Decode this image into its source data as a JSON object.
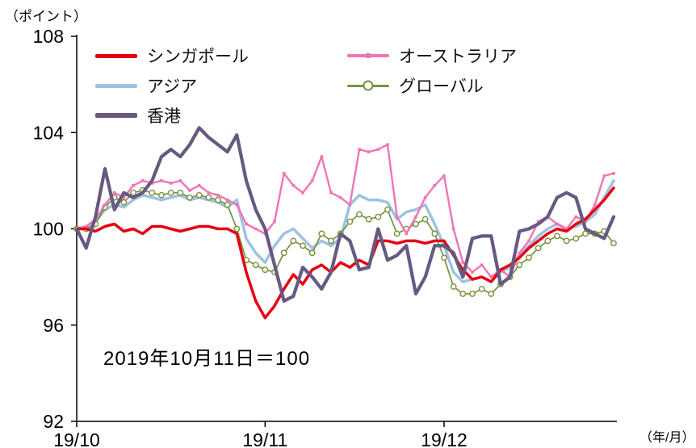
{
  "chart_data": {
    "type": "line",
    "title": "",
    "annotation": "2019年10月11日＝100",
    "y_unit_label": "（ポイント）",
    "x_unit_label": "（年/月）",
    "ylim": [
      92,
      108
    ],
    "y_ticks": [
      108,
      104,
      100,
      96,
      92
    ],
    "x_ticks": [
      {
        "i": 0,
        "label": "19/10"
      },
      {
        "i": 20,
        "label": "19/11"
      },
      {
        "i": 39,
        "label": "19/12"
      }
    ],
    "grid": false,
    "legend_position": "top-inside",
    "series": [
      {
        "id": "singapore",
        "name": "シンガポール",
        "color": "#e60012",
        "marker": "none",
        "values": [
          100.0,
          100.0,
          99.9,
          100.1,
          100.2,
          99.9,
          100.0,
          99.8,
          100.1,
          100.1,
          100.0,
          99.9,
          100.0,
          100.1,
          100.1,
          100.0,
          100.0,
          99.8,
          98.2,
          97.0,
          96.3,
          96.8,
          97.5,
          98.1,
          97.7,
          98.3,
          98.5,
          98.2,
          98.6,
          98.4,
          98.7,
          98.5,
          99.5,
          99.5,
          99.4,
          99.5,
          99.5,
          99.4,
          99.5,
          99.5,
          98.9,
          98.3,
          97.9,
          98.0,
          97.8,
          98.3,
          98.5,
          98.8,
          99.2,
          99.5,
          99.8,
          100.0,
          99.9,
          100.2,
          100.4,
          100.8,
          101.2,
          101.7
        ]
      },
      {
        "id": "australia",
        "name": "オーストラリア",
        "color": "#f173b6",
        "marker": "square",
        "values": [
          100.0,
          100.1,
          100.4,
          101.0,
          101.5,
          101.3,
          101.8,
          102.0,
          101.9,
          102.0,
          101.9,
          102.0,
          101.6,
          101.8,
          101.5,
          101.4,
          101.2,
          101.0,
          100.2,
          100.0,
          99.8,
          100.3,
          102.3,
          101.8,
          101.5,
          102.0,
          103.0,
          101.5,
          101.3,
          101.0,
          103.3,
          103.2,
          103.3,
          103.5,
          100.5,
          99.8,
          100.5,
          101.3,
          101.8,
          102.2,
          100.0,
          98.6,
          98.2,
          98.5,
          98.0,
          98.3,
          98.0,
          99.0,
          99.5,
          100.3,
          100.5,
          100.2,
          100.0,
          100.5,
          100.3,
          101.0,
          102.2,
          102.3
        ]
      },
      {
        "id": "asia",
        "name": "アジア",
        "color": "#9dc3e0",
        "marker": "none",
        "values": [
          100.0,
          100.1,
          100.3,
          100.8,
          101.0,
          100.9,
          101.2,
          101.4,
          101.3,
          101.2,
          101.3,
          101.4,
          101.2,
          101.3,
          101.2,
          101.1,
          100.9,
          101.2,
          99.6,
          99.0,
          98.6,
          99.3,
          99.8,
          100.0,
          99.6,
          99.2,
          99.5,
          99.3,
          99.6,
          101.0,
          101.4,
          101.2,
          101.2,
          101.1,
          100.4,
          100.7,
          100.8,
          101.0,
          100.2,
          99.3,
          98.2,
          97.8,
          97.9,
          98.0,
          97.8,
          98.2,
          98.4,
          98.9,
          99.3,
          99.7,
          100.0,
          100.2,
          100.0,
          100.1,
          100.3,
          100.6,
          101.3,
          102.0
        ]
      },
      {
        "id": "global",
        "name": "グローバル",
        "color": "#76923c",
        "marker": "circle-open",
        "values": [
          100.0,
          100.0,
          100.2,
          100.9,
          101.3,
          101.1,
          101.5,
          101.6,
          101.5,
          101.4,
          101.5,
          101.5,
          101.3,
          101.4,
          101.3,
          101.2,
          101.0,
          100.0,
          98.7,
          98.5,
          98.3,
          98.2,
          99.0,
          99.5,
          99.3,
          99.0,
          99.8,
          99.5,
          99.8,
          100.3,
          100.6,
          100.4,
          100.5,
          100.8,
          99.8,
          100.0,
          100.2,
          100.4,
          99.8,
          98.8,
          97.6,
          97.3,
          97.3,
          97.5,
          97.3,
          97.7,
          98.0,
          98.5,
          98.8,
          99.2,
          99.5,
          99.7,
          99.5,
          99.6,
          99.8,
          99.8,
          99.9,
          99.4
        ]
      },
      {
        "id": "hongkong",
        "name": "香港",
        "color": "#675980",
        "marker": "none",
        "values": [
          100.0,
          99.2,
          100.5,
          102.5,
          100.8,
          101.5,
          101.3,
          101.5,
          102.0,
          103.0,
          103.3,
          103.0,
          103.5,
          104.2,
          103.8,
          103.5,
          103.2,
          103.9,
          102.0,
          100.8,
          100.0,
          98.5,
          97.0,
          97.2,
          98.4,
          98.0,
          97.5,
          98.2,
          99.8,
          99.5,
          98.3,
          98.4,
          100.0,
          98.7,
          98.9,
          99.3,
          97.3,
          98.0,
          99.3,
          99.3,
          99.0,
          98.0,
          99.6,
          99.7,
          99.7,
          97.7,
          98.0,
          99.9,
          100.0,
          100.2,
          100.5,
          101.3,
          101.5,
          101.3,
          100.0,
          99.8,
          99.6,
          100.5
        ]
      }
    ]
  }
}
